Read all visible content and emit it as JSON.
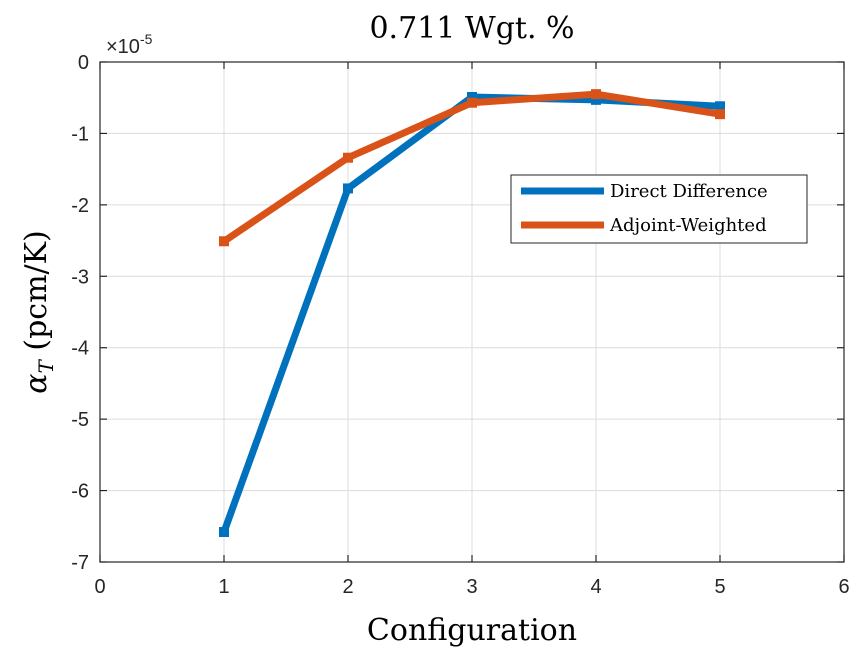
{
  "chart_data": {
    "type": "line",
    "title": "0.711 Wgt. %",
    "xlabel": "Configuration",
    "ylabel_symbol": "α",
    "ylabel_subscript": "T",
    "ylabel_unit": " (pcm/K)",
    "exponent_prefix": "×10",
    "exponent_power": "-5",
    "xlim": [
      0,
      6
    ],
    "ylim": [
      -7,
      0
    ],
    "xticks": [
      0,
      1,
      2,
      3,
      4,
      5,
      6
    ],
    "yticks": [
      0,
      -1,
      -2,
      -3,
      -4,
      -5,
      -6,
      -7
    ],
    "grid": true,
    "legend_placement": "upper-right",
    "x": [
      1,
      2,
      3,
      4,
      5
    ],
    "series": [
      {
        "name": "Direct Difference",
        "color": "#0072BD",
        "values": [
          -6.58,
          -1.77,
          -0.49,
          -0.53,
          -0.62
        ]
      },
      {
        "name": "Adjoint-Weighted",
        "color": "#D95319",
        "values": [
          -2.51,
          -1.34,
          -0.57,
          -0.45,
          -0.73
        ]
      }
    ]
  }
}
